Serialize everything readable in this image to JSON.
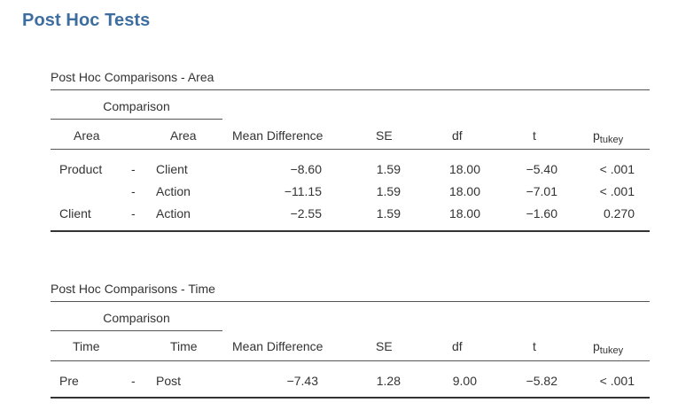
{
  "section_title": "Post Hoc Tests",
  "tables": [
    {
      "title": "Post Hoc Comparisons - Area",
      "comparison_label": "Comparison",
      "col_factor": "Area",
      "headers": {
        "mean_diff": "Mean Difference",
        "se": "SE",
        "df": "df",
        "t": "t",
        "p_main": "p",
        "p_sub": "tukey"
      },
      "rows": [
        {
          "a": "Product",
          "sep": "-",
          "b": "Client",
          "md": "−8.60",
          "se": "1.59",
          "df": "18.00",
          "t": "−5.40",
          "p": "< .001"
        },
        {
          "a": "",
          "sep": "-",
          "b": "Action",
          "md": "−11.15",
          "se": "1.59",
          "df": "18.00",
          "t": "−7.01",
          "p": "< .001"
        },
        {
          "a": "Client",
          "sep": "-",
          "b": "Action",
          "md": "−2.55",
          "se": "1.59",
          "df": "18.00",
          "t": "−1.60",
          "p": "0.270"
        }
      ]
    },
    {
      "title": "Post Hoc Comparisons - Time",
      "comparison_label": "Comparison",
      "col_factor": "Time",
      "headers": {
        "mean_diff": "Mean Difference",
        "se": "SE",
        "df": "df",
        "t": "t",
        "p_main": "p",
        "p_sub": "tukey"
      },
      "rows": [
        {
          "a": "Pre",
          "sep": "-",
          "b": "Post",
          "md": "−7.43",
          "se": "1.28",
          "df": "9.00",
          "t": "−5.82",
          "p": "< .001"
        }
      ]
    }
  ]
}
